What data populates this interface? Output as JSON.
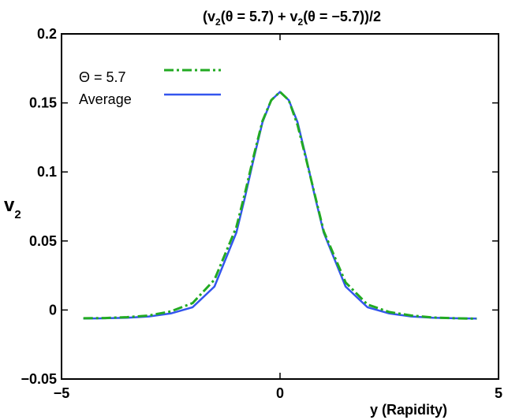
{
  "chart_data": {
    "type": "line",
    "title": {
      "open": "(v",
      "sub1": "2",
      "mid1": "(θ = 5.7) + v",
      "sub2": "2",
      "end": "(θ = −5.7))/2"
    },
    "xlabel": "y (Rapidity)",
    "ylabel": {
      "main": "v",
      "sub": "2"
    },
    "xlim": [
      -5,
      5
    ],
    "ylim": [
      -0.05,
      0.2
    ],
    "xticks": [
      -5,
      0,
      5
    ],
    "xtick_labels": [
      "−5",
      "0",
      "5"
    ],
    "yticks": [
      -0.05,
      0,
      0.05,
      0.1,
      0.15,
      0.2
    ],
    "ytick_labels": [
      "−0.05",
      "0",
      "0.05",
      "0.1",
      "0.15",
      "0.2"
    ],
    "grid": false,
    "legend_position": "top-left",
    "legend": [
      "Θ = 5.7",
      "Average"
    ],
    "series": [
      {
        "name": "Θ = 5.7",
        "color": "#22aa22",
        "style": "dash-dot",
        "x": [
          -4.5,
          -4.0,
          -3.5,
          -3.0,
          -2.5,
          -2.0,
          -1.5,
          -1.0,
          -0.8,
          -0.6,
          -0.4,
          -0.2,
          0.0,
          0.2,
          0.4,
          0.6,
          0.8,
          1.0,
          1.5,
          2.0,
          2.5,
          3.0,
          3.5,
          4.0,
          4.5
        ],
        "y": [
          -0.006,
          -0.0058,
          -0.0052,
          -0.004,
          -0.001,
          0.005,
          0.022,
          0.06,
          0.085,
          0.112,
          0.137,
          0.152,
          0.158,
          0.152,
          0.134,
          0.109,
          0.083,
          0.057,
          0.02,
          0.004,
          -0.0015,
          -0.004,
          -0.0055,
          -0.006,
          -0.0063
        ]
      },
      {
        "name": "Average",
        "color": "#3355ee",
        "style": "solid",
        "x": [
          -4.5,
          -4.0,
          -3.5,
          -3.0,
          -2.5,
          -2.0,
          -1.5,
          -1.0,
          -0.8,
          -0.6,
          -0.4,
          -0.2,
          0.0,
          0.2,
          0.4,
          0.6,
          0.8,
          1.0,
          1.5,
          2.0,
          2.5,
          3.0,
          3.5,
          4.0,
          4.5
        ],
        "y": [
          -0.0062,
          -0.006,
          -0.0056,
          -0.0047,
          -0.0025,
          0.002,
          0.017,
          0.056,
          0.082,
          0.11,
          0.136,
          0.152,
          0.158,
          0.152,
          0.136,
          0.11,
          0.082,
          0.056,
          0.017,
          0.002,
          -0.0025,
          -0.0047,
          -0.0056,
          -0.006,
          -0.0062
        ]
      }
    ]
  }
}
